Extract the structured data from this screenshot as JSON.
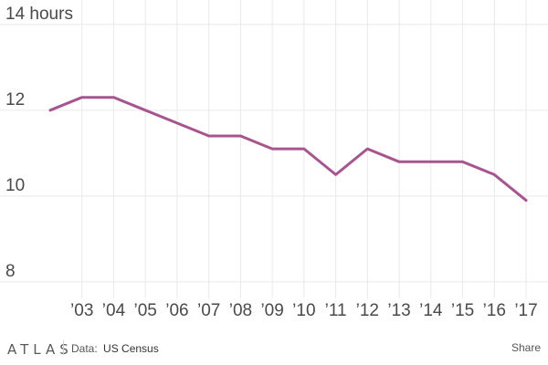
{
  "chart_data": {
    "type": "line",
    "title": "",
    "ylabel": "hours",
    "xlabel": "",
    "ylim": [
      7.7,
      14.4
    ],
    "y_ticks": [
      {
        "value": 14,
        "label": "14 hours"
      },
      {
        "value": 12,
        "label": "12"
      },
      {
        "value": 10,
        "label": "10"
      },
      {
        "value": 8,
        "label": "8"
      }
    ],
    "x": [
      2002,
      2003,
      2004,
      2005,
      2006,
      2007,
      2008,
      2009,
      2010,
      2011,
      2012,
      2013,
      2014,
      2015,
      2016,
      2017
    ],
    "x_tick_labels": [
      "’03",
      "’04",
      "’05",
      "’06",
      "’07",
      "’08",
      "’09",
      "’10",
      "’11",
      "’12",
      "’13",
      "’14",
      "’15",
      "’16",
      "’17"
    ],
    "x_tick_values": [
      2003,
      2004,
      2005,
      2006,
      2007,
      2008,
      2009,
      2010,
      2011,
      2012,
      2013,
      2014,
      2015,
      2016,
      2017
    ],
    "series": [
      {
        "name": "hours",
        "color": "#a8558f",
        "values": [
          12.0,
          12.3,
          12.3,
          12.0,
          11.7,
          11.4,
          11.4,
          11.1,
          11.1,
          10.5,
          11.1,
          10.8,
          10.8,
          10.8,
          10.5,
          9.9
        ]
      }
    ],
    "grid": true
  },
  "footer": {
    "brand": "ATLAS",
    "source_label": "Data:",
    "source_value": "US Census",
    "share_label": "Share"
  }
}
